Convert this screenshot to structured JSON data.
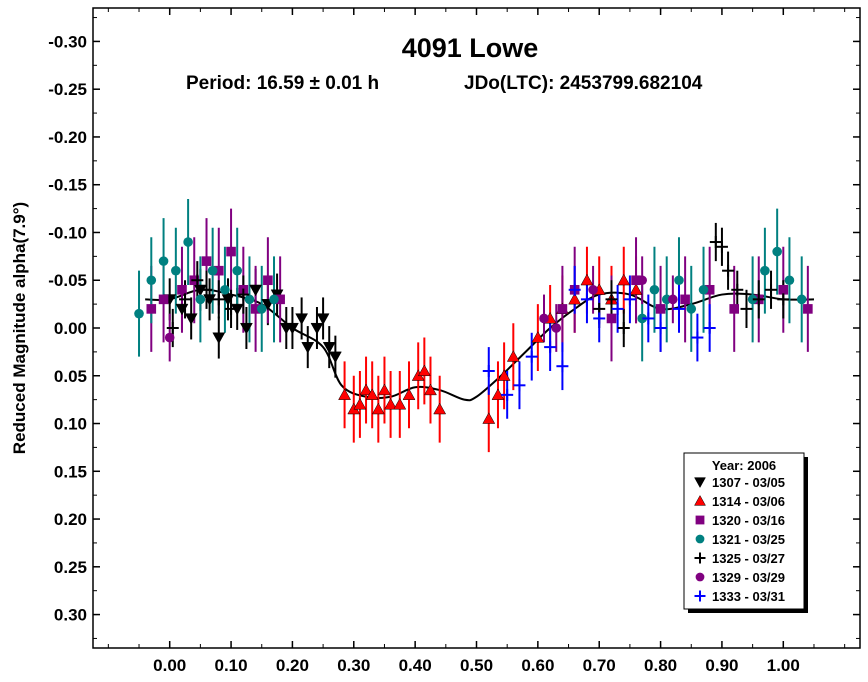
{
  "chart_data": {
    "type": "scatter",
    "title": "4091 Lowe",
    "subtitle_period": "Period: 16.59 ± 0.01 h",
    "subtitle_epoch": "JDo(LTC): 2453799.682104",
    "ylabel": "Reduced Magnitude alpha(7.9°)",
    "xlabel": "",
    "xlim": [
      -0.125,
      1.125
    ],
    "ylim": [
      0.335,
      -0.335
    ],
    "y_inverted": true,
    "grid": false,
    "x_ticks": [
      "0.00",
      "0.10",
      "0.20",
      "0.30",
      "0.40",
      "0.50",
      "0.60",
      "0.70",
      "0.80",
      "0.90",
      "1.00"
    ],
    "x_tick_values": [
      0.0,
      0.1,
      0.2,
      0.3,
      0.4,
      0.5,
      0.6,
      0.7,
      0.8,
      0.9,
      1.0
    ],
    "y_ticks": [
      "-0.30",
      "-0.25",
      "-0.20",
      "-0.15",
      "-0.10",
      "-0.05",
      "0.00",
      "0.05",
      "0.10",
      "0.15",
      "0.20",
      "0.25",
      "0.30"
    ],
    "y_tick_values": [
      -0.3,
      -0.25,
      -0.2,
      -0.15,
      -0.1,
      -0.05,
      0.0,
      0.05,
      0.1,
      0.15,
      0.2,
      0.25,
      0.3
    ],
    "legend": {
      "placement": "bottom-right",
      "title": "Year: 2006",
      "entries": [
        {
          "label": "1307 - 03/05",
          "marker": "triangle-down",
          "color": "#000000"
        },
        {
          "label": "1314 - 03/06",
          "marker": "triangle-up",
          "color": "#ff0000"
        },
        {
          "label": "1320 - 03/16",
          "marker": "square",
          "color": "#800080"
        },
        {
          "label": "1321 - 03/25",
          "marker": "circle",
          "color": "#008080"
        },
        {
          "label": "1325 - 03/27",
          "marker": "plus",
          "color": "#000000"
        },
        {
          "label": "1329 - 03/29",
          "marker": "circle",
          "color": "#800080"
        },
        {
          "label": "1333 - 03/31",
          "marker": "plus",
          "color": "#0000ff"
        }
      ]
    },
    "fit_curve": {
      "x": [
        -0.04,
        0.0,
        0.05,
        0.1,
        0.15,
        0.2,
        0.25,
        0.28,
        0.32,
        0.36,
        0.4,
        0.44,
        0.48,
        0.5,
        0.54,
        0.58,
        0.62,
        0.66,
        0.7,
        0.75,
        0.8,
        0.85,
        0.9,
        0.95,
        1.0,
        1.05
      ],
      "y": [
        -0.03,
        -0.03,
        -0.04,
        -0.035,
        -0.025,
        0.0,
        0.02,
        0.06,
        0.072,
        0.072,
        0.062,
        0.065,
        0.075,
        0.072,
        0.05,
        0.025,
        0.0,
        -0.02,
        -0.035,
        -0.035,
        -0.02,
        -0.025,
        -0.035,
        -0.035,
        -0.03,
        -0.03
      ],
      "color": "#000000"
    },
    "series": [
      {
        "name": "1307 - 03/05",
        "marker": "triangle-down",
        "color": "#000000",
        "err": 0.022,
        "x": [
          0.0,
          0.02,
          0.035,
          0.05,
          0.065,
          0.08,
          0.095,
          0.11,
          0.125,
          0.14,
          0.16,
          0.175,
          0.19,
          0.2,
          0.215,
          0.225,
          0.24,
          0.25,
          0.26,
          0.27
        ],
        "y": [
          -0.03,
          -0.02,
          -0.01,
          -0.04,
          -0.03,
          0.01,
          -0.03,
          -0.02,
          0.0,
          -0.04,
          -0.025,
          -0.035,
          0.0,
          0.0,
          -0.01,
          0.02,
          0.0,
          -0.01,
          0.02,
          0.03
        ]
      },
      {
        "name": "1314 - 03/06",
        "marker": "triangle-up",
        "color": "#ff0000",
        "err": 0.035,
        "x": [
          0.285,
          0.3,
          0.31,
          0.32,
          0.33,
          0.34,
          0.35,
          0.36,
          0.375,
          0.39,
          0.405,
          0.415,
          0.425,
          0.44,
          0.52,
          0.535,
          0.545,
          0.56,
          0.6,
          0.62,
          0.64,
          0.66,
          0.68,
          0.7,
          0.72,
          0.74,
          0.76
        ],
        "y": [
          0.07,
          0.085,
          0.08,
          0.065,
          0.07,
          0.085,
          0.065,
          0.08,
          0.08,
          0.07,
          0.05,
          0.045,
          0.065,
          0.085,
          0.095,
          0.07,
          0.05,
          0.03,
          0.01,
          -0.01,
          -0.02,
          -0.03,
          -0.05,
          -0.04,
          -0.03,
          -0.05,
          -0.04
        ]
      },
      {
        "name": "1320 - 03/16",
        "marker": "square",
        "color": "#800080",
        "err": 0.045,
        "x": [
          -0.03,
          -0.01,
          0.02,
          0.04,
          0.06,
          0.08,
          0.1,
          0.12,
          0.14,
          0.16,
          0.18,
          0.64,
          0.66,
          0.72,
          0.76,
          0.8,
          0.84,
          0.88,
          0.92,
          0.96,
          1.0,
          1.04
        ],
        "y": [
          -0.02,
          -0.03,
          -0.04,
          -0.05,
          -0.07,
          -0.06,
          -0.08,
          -0.04,
          -0.02,
          -0.05,
          -0.03,
          -0.02,
          -0.04,
          -0.01,
          -0.05,
          -0.02,
          -0.03,
          -0.04,
          -0.02,
          -0.03,
          -0.04,
          -0.02
        ]
      },
      {
        "name": "1321 - 03/25",
        "marker": "circle",
        "color": "#008080",
        "err": 0.045,
        "x": [
          -0.05,
          -0.03,
          -0.01,
          0.01,
          0.03,
          0.05,
          0.07,
          0.09,
          0.11,
          0.13,
          0.15,
          0.17,
          0.77,
          0.79,
          0.81,
          0.83,
          0.85,
          0.87,
          0.95,
          0.97,
          0.99,
          1.01,
          1.03
        ],
        "y": [
          -0.015,
          -0.05,
          -0.07,
          -0.06,
          -0.09,
          -0.03,
          -0.06,
          -0.04,
          -0.06,
          -0.03,
          -0.02,
          -0.03,
          -0.01,
          -0.04,
          -0.03,
          -0.05,
          -0.02,
          -0.04,
          -0.03,
          -0.06,
          -0.08,
          -0.05,
          -0.03
        ]
      },
      {
        "name": "1325 - 03/27",
        "marker": "plus",
        "color": "#000000",
        "err": 0.02,
        "x": [
          0.005,
          0.025,
          0.045,
          0.06,
          0.08,
          0.1,
          0.12,
          0.7,
          0.72,
          0.74,
          0.89,
          0.9,
          0.91,
          0.925,
          0.94,
          0.96,
          0.98,
          1.0
        ],
        "y": [
          0.0,
          -0.03,
          -0.05,
          -0.04,
          -0.03,
          -0.02,
          -0.035,
          -0.02,
          -0.03,
          0.0,
          -0.09,
          -0.085,
          -0.06,
          -0.04,
          -0.02,
          -0.03,
          -0.04,
          -0.03
        ]
      },
      {
        "name": "1329 - 03/29",
        "marker": "circle",
        "color": "#800080",
        "err": 0.025,
        "x": [
          0.0,
          0.61,
          0.63,
          0.69,
          0.77,
          0.82
        ],
        "y": [
          0.01,
          -0.01,
          0.0,
          -0.04,
          -0.05,
          -0.03
        ]
      },
      {
        "name": "1333 - 03/31",
        "marker": "plus",
        "color": "#0000ff",
        "err": 0.025,
        "x": [
          0.52,
          0.55,
          0.57,
          0.59,
          0.62,
          0.64,
          0.66,
          0.68,
          0.7,
          0.73,
          0.75,
          0.78,
          0.8,
          0.83,
          0.86,
          0.88
        ],
        "y": [
          0.045,
          0.07,
          0.06,
          0.03,
          0.02,
          0.04,
          -0.04,
          -0.03,
          -0.01,
          -0.02,
          -0.03,
          -0.01,
          0.0,
          -0.02,
          0.01,
          0.0
        ]
      }
    ]
  }
}
